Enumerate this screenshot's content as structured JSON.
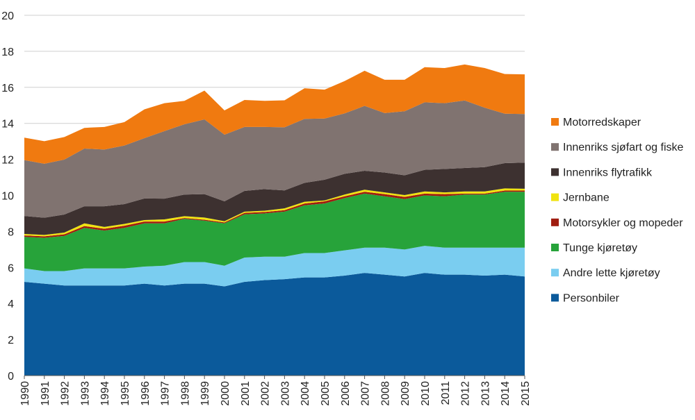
{
  "chart_data": {
    "type": "area",
    "stacked": true,
    "title": "",
    "xlabel": "",
    "ylabel": "",
    "ylim": [
      0,
      20
    ],
    "yticks": [
      0,
      2,
      4,
      6,
      8,
      10,
      12,
      14,
      16,
      18,
      20
    ],
    "grid": "horizontal",
    "legend_position": "right",
    "x": [
      1990,
      1991,
      1992,
      1993,
      1994,
      1995,
      1996,
      1997,
      1998,
      1999,
      2000,
      2001,
      2002,
      2003,
      2004,
      2005,
      2006,
      2007,
      2008,
      2009,
      2010,
      2011,
      2012,
      2013,
      2014,
      2015
    ],
    "series": [
      {
        "name": "Personbiler",
        "color": "#0b5a9b",
        "values": [
          5.2,
          5.1,
          5.0,
          5.0,
          5.0,
          5.0,
          5.1,
          5.0,
          5.1,
          5.1,
          4.95,
          5.2,
          5.3,
          5.35,
          5.45,
          5.45,
          5.55,
          5.7,
          5.6,
          5.5,
          5.7,
          5.6,
          5.6,
          5.55,
          5.6,
          5.5
        ]
      },
      {
        "name": "Andre lette kjøretøy",
        "color": "#7acdf0",
        "values": [
          0.75,
          0.7,
          0.8,
          0.95,
          0.95,
          0.95,
          0.95,
          1.1,
          1.2,
          1.2,
          1.15,
          1.35,
          1.3,
          1.25,
          1.35,
          1.35,
          1.4,
          1.4,
          1.5,
          1.5,
          1.5,
          1.5,
          1.5,
          1.55,
          1.5,
          1.6
        ]
      },
      {
        "name": "Tunge kjøretøy",
        "color": "#27a33a",
        "values": [
          1.75,
          1.85,
          1.95,
          2.25,
          2.1,
          2.25,
          2.4,
          2.35,
          2.4,
          2.3,
          2.35,
          2.4,
          2.4,
          2.5,
          2.65,
          2.75,
          2.9,
          3.0,
          2.85,
          2.8,
          2.8,
          2.85,
          2.95,
          2.95,
          3.1,
          3.1
        ]
      },
      {
        "name": "Motorsykler og mopeder",
        "color": "#a01d10",
        "values": [
          0.08,
          0.08,
          0.09,
          0.1,
          0.1,
          0.12,
          0.1,
          0.1,
          0.05,
          0.05,
          0.05,
          0.08,
          0.08,
          0.08,
          0.1,
          0.12,
          0.1,
          0.1,
          0.12,
          0.12,
          0.1,
          0.12,
          0.05,
          0.05,
          0.07,
          0.07
        ]
      },
      {
        "name": "Jernbane",
        "color": "#f0e310",
        "values": [
          0.08,
          0.08,
          0.1,
          0.15,
          0.1,
          0.1,
          0.08,
          0.12,
          0.1,
          0.12,
          0.07,
          0.07,
          0.07,
          0.1,
          0.1,
          0.05,
          0.1,
          0.12,
          0.1,
          0.1,
          0.12,
          0.1,
          0.12,
          0.12,
          0.12,
          0.1
        ]
      },
      {
        "name": "Innenriks flytrafikk",
        "color": "#3d3130",
        "values": [
          1.0,
          0.95,
          1.0,
          0.95,
          1.15,
          1.1,
          1.2,
          1.15,
          1.2,
          1.3,
          1.1,
          1.15,
          1.2,
          1.0,
          1.05,
          1.15,
          1.15,
          1.05,
          1.1,
          1.1,
          1.2,
          1.3,
          1.3,
          1.35,
          1.4,
          1.45
        ]
      },
      {
        "name": "Innenriks sjøfart og fiske",
        "color": "#807370",
        "values": [
          3.1,
          3.0,
          3.05,
          3.2,
          3.15,
          3.25,
          3.35,
          3.75,
          3.9,
          4.15,
          3.7,
          3.55,
          3.45,
          3.5,
          3.55,
          3.4,
          3.35,
          3.6,
          3.3,
          3.55,
          3.75,
          3.65,
          3.75,
          3.3,
          2.75,
          2.7
        ]
      },
      {
        "name": "Motorredskaper",
        "color": "#f07a10",
        "values": [
          1.25,
          1.25,
          1.25,
          1.15,
          1.25,
          1.3,
          1.6,
          1.55,
          1.3,
          1.6,
          1.35,
          1.5,
          1.45,
          1.5,
          1.7,
          1.6,
          1.8,
          1.95,
          1.85,
          1.75,
          1.95,
          1.95,
          2.0,
          2.2,
          2.2,
          2.2
        ]
      }
    ]
  }
}
